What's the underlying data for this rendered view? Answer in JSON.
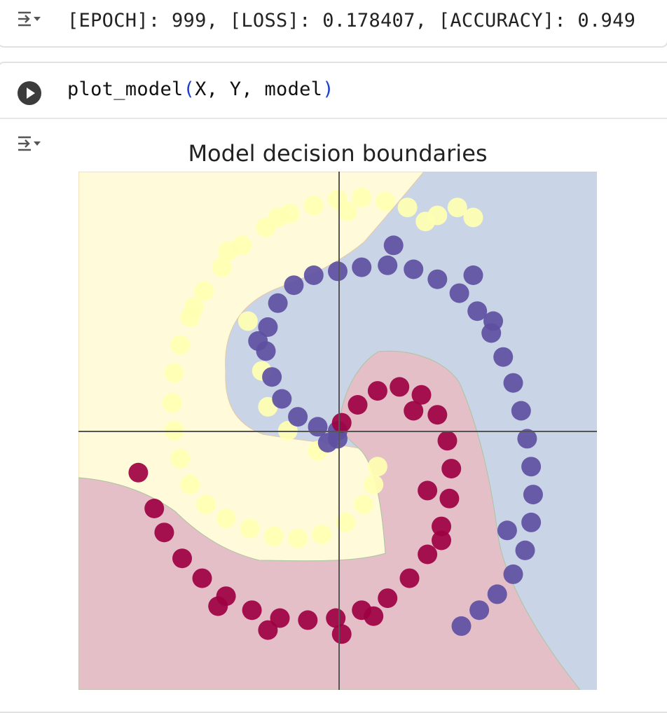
{
  "previous_output": {
    "text": "[EPOCH]: 999, [LOSS]: 0.178407, [ACCURACY]: 0.949"
  },
  "code_cell": {
    "func": "plot_model",
    "open_paren": "(",
    "args": "X, Y, model",
    "close_paren": ")"
  },
  "icons": {
    "run": "play-circle-icon",
    "output": "output-collapse-icon"
  },
  "colors": {
    "class_yellow": "#ffffb2",
    "class_blue": "#5e4fa2",
    "class_red": "#9e0142",
    "region_yellow": "#fffbda",
    "region_blue": "#c9d4e6",
    "region_red": "#e4bfc7"
  },
  "chart_data": {
    "type": "scatter",
    "title": "Model decision boundaries",
    "xlabel": "",
    "ylabel": "",
    "xlim": [
      -1.3,
      1.3
    ],
    "ylim": [
      -1.3,
      1.3
    ],
    "grid": false,
    "legend": "none",
    "axis_lines_at": [
      0,
      0
    ],
    "series": [
      {
        "color": "#ffffb2",
        "points": [
          [
            0.44,
            1.05
          ],
          [
            0.35,
            1.12
          ],
          [
            0.24,
            1.15
          ],
          [
            0.12,
            1.17
          ],
          [
            0.0,
            1.16
          ],
          [
            -0.12,
            1.13
          ],
          [
            -0.24,
            1.09
          ],
          [
            -0.36,
            1.02
          ],
          [
            -0.48,
            0.93
          ],
          [
            -0.58,
            0.82
          ],
          [
            -0.67,
            0.7
          ],
          [
            -0.74,
            0.57
          ],
          [
            -0.79,
            0.43
          ],
          [
            -0.82,
            0.29
          ],
          [
            -0.83,
            0.14
          ],
          [
            -0.82,
            0.0
          ],
          [
            -0.79,
            -0.14
          ],
          [
            -0.74,
            -0.27
          ],
          [
            -0.66,
            -0.37
          ],
          [
            -0.56,
            -0.44
          ],
          [
            -0.44,
            -0.49
          ],
          [
            -0.32,
            -0.53
          ],
          [
            -0.2,
            -0.54
          ],
          [
            -0.08,
            -0.52
          ],
          [
            0.04,
            -0.46
          ],
          [
            0.13,
            -0.37
          ],
          [
            0.18,
            -0.27
          ],
          [
            0.2,
            -0.18
          ],
          [
            -0.1,
            -0.1
          ],
          [
            -0.25,
            0.0
          ],
          [
            -0.35,
            0.12
          ],
          [
            -0.38,
            0.3
          ],
          [
            -0.45,
            0.55
          ],
          [
            0.6,
            1.12
          ],
          [
            0.68,
            1.07
          ],
          [
            0.5,
            1.08
          ],
          [
            0.05,
            1.1
          ],
          [
            -0.3,
            1.07
          ],
          [
            -0.55,
            0.9
          ],
          [
            -0.72,
            0.62
          ]
        ]
      },
      {
        "color": "#5e4fa2",
        "points": [
          [
            0.0,
            0.0
          ],
          [
            -0.1,
            0.02
          ],
          [
            -0.2,
            0.07
          ],
          [
            -0.28,
            0.16
          ],
          [
            -0.33,
            0.27
          ],
          [
            -0.36,
            0.4
          ],
          [
            -0.35,
            0.52
          ],
          [
            -0.3,
            0.64
          ],
          [
            -0.22,
            0.73
          ],
          [
            -0.12,
            0.78
          ],
          [
            0.0,
            0.8
          ],
          [
            0.12,
            0.82
          ],
          [
            0.25,
            0.83
          ],
          [
            0.38,
            0.81
          ],
          [
            0.5,
            0.76
          ],
          [
            0.61,
            0.69
          ],
          [
            0.7,
            0.6
          ],
          [
            0.77,
            0.49
          ],
          [
            0.83,
            0.37
          ],
          [
            0.88,
            0.24
          ],
          [
            0.92,
            0.1
          ],
          [
            0.95,
            -0.04
          ],
          [
            0.97,
            -0.18
          ],
          [
            0.98,
            -0.32
          ],
          [
            0.97,
            -0.46
          ],
          [
            0.94,
            -0.6
          ],
          [
            0.88,
            -0.72
          ],
          [
            0.8,
            -0.82
          ],
          [
            0.71,
            -0.9
          ],
          [
            0.62,
            -0.98
          ],
          [
            0.85,
            -0.5
          ],
          [
            0.68,
            0.78
          ],
          [
            0.28,
            0.93
          ],
          [
            -0.4,
            0.45
          ],
          [
            0.0,
            -0.04
          ],
          [
            -0.05,
            -0.06
          ],
          [
            0.78,
            0.55
          ]
        ]
      },
      {
        "color": "#9e0142",
        "points": [
          [
            0.02,
            0.04
          ],
          [
            0.1,
            0.13
          ],
          [
            0.2,
            0.2
          ],
          [
            0.31,
            0.22
          ],
          [
            0.42,
            0.18
          ],
          [
            0.5,
            0.08
          ],
          [
            0.55,
            -0.05
          ],
          [
            0.57,
            -0.19
          ],
          [
            0.56,
            -0.34
          ],
          [
            0.52,
            -0.48
          ],
          [
            0.45,
            -0.62
          ],
          [
            0.36,
            -0.74
          ],
          [
            0.25,
            -0.84
          ],
          [
            0.12,
            -0.9
          ],
          [
            -0.01,
            -0.94
          ],
          [
            -0.15,
            -0.95
          ],
          [
            -0.29,
            -0.94
          ],
          [
            -0.43,
            -0.9
          ],
          [
            -0.56,
            -0.83
          ],
          [
            -0.68,
            -0.74
          ],
          [
            -0.78,
            -0.64
          ],
          [
            -0.87,
            -0.51
          ],
          [
            -0.92,
            -0.39
          ],
          [
            -1.0,
            -0.21
          ],
          [
            0.38,
            0.1
          ],
          [
            0.18,
            -0.93
          ],
          [
            0.02,
            -1.02
          ],
          [
            -0.35,
            -1.0
          ],
          [
            -0.6,
            -0.88
          ],
          [
            0.52,
            -0.55
          ],
          [
            0.45,
            -0.3
          ]
        ]
      }
    ]
  }
}
